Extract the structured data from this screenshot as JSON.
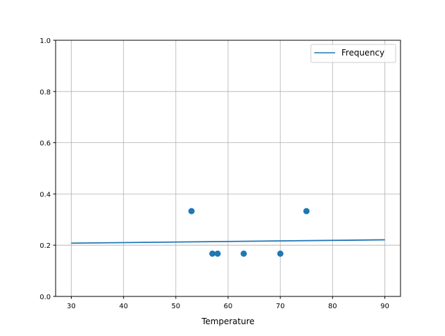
{
  "chart_data": {
    "type": "scatter",
    "title": "",
    "xlabel": "Temperature",
    "ylabel": "",
    "xlim": [
      27,
      93
    ],
    "ylim": [
      0,
      1
    ],
    "xticks": [
      30,
      40,
      50,
      60,
      70,
      80,
      90
    ],
    "xtick_labels": [
      "30",
      "40",
      "50",
      "60",
      "70",
      "80",
      "90"
    ],
    "yticks": [
      0,
      0.2,
      0.4,
      0.6,
      0.8,
      1.0
    ],
    "ytick_labels": [
      "0.0",
      "0.2",
      "0.4",
      "0.6",
      "0.8",
      "1.0"
    ],
    "grid": true,
    "legend_placement": "top-right",
    "color": "#1f77b4",
    "scatter": {
      "x": [
        53,
        57,
        58,
        63,
        70,
        75
      ],
      "y": [
        0.333,
        0.167,
        0.167,
        0.167,
        0.167,
        0.333
      ]
    },
    "series": [
      {
        "name": "Frequency",
        "type": "line",
        "x": [
          30,
          90
        ],
        "y": [
          0.208,
          0.221
        ]
      }
    ]
  }
}
